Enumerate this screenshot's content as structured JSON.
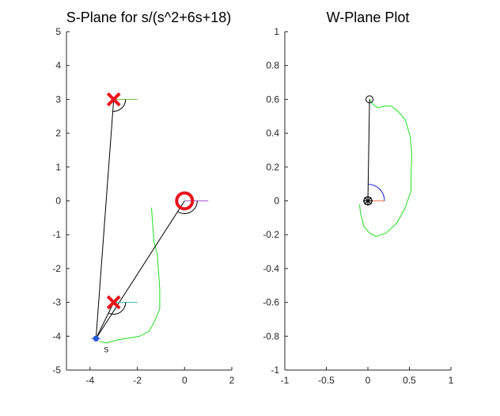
{
  "chart_data": [
    {
      "type": "scatter",
      "title": "S-Plane for s/(s^2+6s+18)",
      "xlabel": "",
      "ylabel": "",
      "xlim": [
        -5,
        2
      ],
      "ylim": [
        -5,
        5
      ],
      "xticks": [
        -4,
        -2,
        0,
        2
      ],
      "yticks": [
        -5,
        -4,
        -3,
        -2,
        -1,
        0,
        1,
        2,
        3,
        4,
        5
      ],
      "grid": false,
      "legend": "none",
      "poles": [
        {
          "x": -3,
          "y": 3
        },
        {
          "x": -3,
          "y": -3
        }
      ],
      "zeros": [
        {
          "x": 0,
          "y": 0
        }
      ],
      "test_point": {
        "x": -3.75,
        "y": -4.07,
        "label": "s"
      },
      "trace": [
        {
          "x": -1.4,
          "y": -0.2
        },
        {
          "x": -1.35,
          "y": -0.7
        },
        {
          "x": -1.3,
          "y": -1.2
        },
        {
          "x": -1.15,
          "y": -1.6
        },
        {
          "x": -1.1,
          "y": -2.1
        },
        {
          "x": -1.05,
          "y": -2.6
        },
        {
          "x": -1.05,
          "y": -3.2
        },
        {
          "x": -1.3,
          "y": -3.6
        },
        {
          "x": -1.5,
          "y": -3.85
        },
        {
          "x": -1.9,
          "y": -4.0
        },
        {
          "x": -2.3,
          "y": -4.05
        },
        {
          "x": -2.8,
          "y": -4.1
        },
        {
          "x": -3.3,
          "y": -4.2
        },
        {
          "x": -3.6,
          "y": -4.15
        }
      ],
      "colors": {
        "pole": "#e8141c",
        "zero": "#e8141c",
        "trace": "#22dd22",
        "point": "#2a57d8",
        "vector": "#000000",
        "pole_top_ref": "#77bb44",
        "pole_bottom_ref": "#33bbbb",
        "zero_ref": "#aa55cc"
      }
    },
    {
      "type": "scatter",
      "title": "W-Plane Plot",
      "xlabel": "",
      "ylabel": "",
      "xlim": [
        -1,
        1
      ],
      "ylim": [
        -1,
        1
      ],
      "xticks": [
        -1,
        -0.5,
        0,
        0.5,
        1
      ],
      "yticks": [
        -1,
        -0.8,
        -0.6,
        -0.4,
        -0.2,
        0,
        0.2,
        0.4,
        0.6,
        0.8,
        1
      ],
      "grid": false,
      "legend": "none",
      "origin_marker": {
        "x": 0,
        "y": 0
      },
      "image_point": {
        "x": 0.02,
        "y": 0.6
      },
      "angle_arc_radius": 0.2,
      "trace": [
        {
          "x": 0.02,
          "y": 0.6
        },
        {
          "x": 0.06,
          "y": 0.57
        },
        {
          "x": 0.12,
          "y": 0.55
        },
        {
          "x": 0.2,
          "y": 0.56
        },
        {
          "x": 0.28,
          "y": 0.56
        },
        {
          "x": 0.36,
          "y": 0.53
        },
        {
          "x": 0.45,
          "y": 0.48
        },
        {
          "x": 0.51,
          "y": 0.38
        },
        {
          "x": 0.53,
          "y": 0.28
        },
        {
          "x": 0.52,
          "y": 0.16
        },
        {
          "x": 0.52,
          "y": 0.06
        },
        {
          "x": 0.45,
          "y": -0.04
        },
        {
          "x": 0.35,
          "y": -0.13
        },
        {
          "x": 0.22,
          "y": -0.19
        },
        {
          "x": 0.1,
          "y": -0.21
        },
        {
          "x": 0.02,
          "y": -0.19
        },
        {
          "x": -0.05,
          "y": -0.15
        },
        {
          "x": -0.09,
          "y": -0.07
        },
        {
          "x": -0.1,
          "y": -0.02
        }
      ],
      "colors": {
        "trace": "#22dd22",
        "vector": "#000000",
        "angle_arc": "#1a1ae0",
        "ref_line": "#ee7755",
        "marker": "#000000"
      }
    }
  ]
}
